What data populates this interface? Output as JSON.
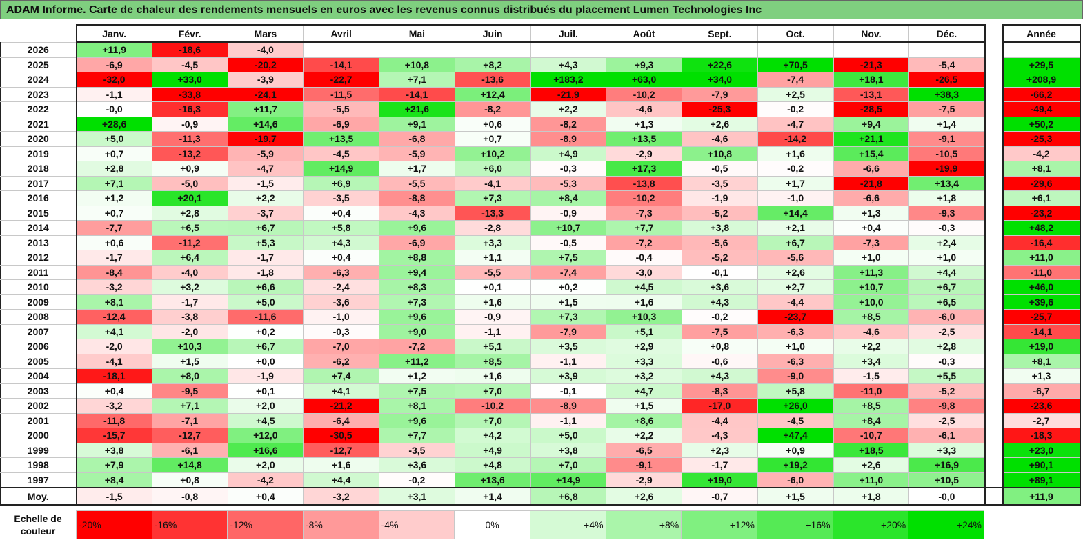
{
  "title": "ADAM Informe. Carte de chaleur des rendements mensuels en euros avec les revenus connus distribués du placement Lumen Technologies Inc",
  "chart_data": {
    "type": "heatmap",
    "title": "ADAM Informe. Carte de chaleur des rendements mensuels en euros avec les revenus connus distribués du placement Lumen Technologies Inc",
    "months": [
      "Janv.",
      "Févr.",
      "Mars",
      "Avril",
      "Mai",
      "Juin",
      "Juil.",
      "Août",
      "Sept.",
      "Oct.",
      "Nov.",
      "Déc."
    ],
    "year_header": "Année",
    "rows": [
      {
        "year": "2026",
        "m": [
          "+11,9",
          "-18,6",
          "-4,0",
          "",
          "",
          "",
          "",
          "",
          "",
          "",
          "",
          ""
        ],
        "y": ""
      },
      {
        "year": "2025",
        "m": [
          "-6,9",
          "-4,5",
          "-20,2",
          "-14,1",
          "+10,8",
          "+8,2",
          "+4,3",
          "+9,3",
          "+22,6",
          "+70,5",
          "-21,3",
          "-5,4"
        ],
        "y": "+29,5"
      },
      {
        "year": "2024",
        "m": [
          "-32,0",
          "+33,0",
          "-3,9",
          "-22,7",
          "+7,1",
          "-13,6",
          "+183,2",
          "+63,0",
          "+34,0",
          "-7,4",
          "+18,1",
          "-26,5"
        ],
        "y": "+208,9"
      },
      {
        "year": "2023",
        "m": [
          "-1,1",
          "-33,8",
          "-24,1",
          "-11,5",
          "-14,1",
          "+12,4",
          "-21,9",
          "-10,2",
          "-7,9",
          "+2,5",
          "-13,1",
          "+38,3"
        ],
        "y": "-66,2"
      },
      {
        "year": "2022",
        "m": [
          "-0,0",
          "-16,3",
          "+11,7",
          "-5,5",
          "+21,6",
          "-8,2",
          "+2,2",
          "-4,6",
          "-25,3",
          "-0,2",
          "-28,5",
          "-7,5"
        ],
        "y": "-49,4"
      },
      {
        "year": "2021",
        "m": [
          "+28,6",
          "-0,9",
          "+14,6",
          "-6,9",
          "+9,1",
          "+0,6",
          "-8,2",
          "+1,3",
          "+2,6",
          "-4,7",
          "+9,4",
          "+1,4"
        ],
        "y": "+50,2"
      },
      {
        "year": "2020",
        "m": [
          "+5,0",
          "-11,3",
          "-19,7",
          "+13,5",
          "-6,8",
          "+0,7",
          "-8,9",
          "+13,5",
          "-4,6",
          "-14,2",
          "+21,1",
          "-9,1"
        ],
        "y": "-25,3"
      },
      {
        "year": "2019",
        "m": [
          "+0,7",
          "-13,2",
          "-5,9",
          "-4,5",
          "-5,9",
          "+10,2",
          "+4,9",
          "-2,9",
          "+10,8",
          "+1,6",
          "+15,4",
          "-10,5"
        ],
        "y": "-4,2"
      },
      {
        "year": "2018",
        "m": [
          "+2,8",
          "+0,9",
          "-4,7",
          "+14,9",
          "+1,7",
          "+6,0",
          "-0,3",
          "+17,3",
          "-0,5",
          "-0,2",
          "-6,6",
          "-19,9"
        ],
        "y": "+8,1"
      },
      {
        "year": "2017",
        "m": [
          "+7,1",
          "-5,0",
          "-1,5",
          "+6,9",
          "-5,5",
          "-4,1",
          "-5,3",
          "-13,8",
          "-3,5",
          "+1,7",
          "-21,8",
          "+13,4"
        ],
        "y": "-29,6"
      },
      {
        "year": "2016",
        "m": [
          "+1,2",
          "+20,1",
          "+2,2",
          "-3,5",
          "-8,8",
          "+7,3",
          "+8,4",
          "-10,2",
          "-1,9",
          "-1,0",
          "-6,6",
          "+1,8"
        ],
        "y": "+6,1"
      },
      {
        "year": "2015",
        "m": [
          "+0,7",
          "+2,8",
          "-3,7",
          "+0,4",
          "-4,3",
          "-13,3",
          "-0,9",
          "-7,3",
          "-5,2",
          "+14,4",
          "+1,3",
          "-9,3"
        ],
        "y": "-23,2"
      },
      {
        "year": "2014",
        "m": [
          "-7,7",
          "+6,5",
          "+6,7",
          "+5,8",
          "+9,6",
          "-2,8",
          "+10,7",
          "+7,7",
          "+3,8",
          "+2,1",
          "+0,4",
          "-0,3"
        ],
        "y": "+48,2"
      },
      {
        "year": "2013",
        "m": [
          "+0,6",
          "-11,2",
          "+5,3",
          "+4,3",
          "-6,9",
          "+3,3",
          "-0,5",
          "-7,2",
          "-5,6",
          "+6,7",
          "-7,3",
          "+2,4"
        ],
        "y": "-16,4"
      },
      {
        "year": "2012",
        "m": [
          "-1,7",
          "+6,4",
          "-1,7",
          "+0,4",
          "+8,8",
          "+1,1",
          "+7,5",
          "-0,4",
          "-5,2",
          "-5,6",
          "+1,0",
          "+1,0"
        ],
        "y": "+11,0"
      },
      {
        "year": "2011",
        "m": [
          "-8,4",
          "-4,0",
          "-1,8",
          "-6,3",
          "+9,4",
          "-5,5",
          "-7,4",
          "-3,0",
          "-0,1",
          "+2,6",
          "+11,3",
          "+4,4"
        ],
        "y": "-11,0"
      },
      {
        "year": "2010",
        "m": [
          "-3,2",
          "+3,2",
          "+6,6",
          "-2,4",
          "+8,3",
          "+0,1",
          "+0,2",
          "+4,5",
          "+3,6",
          "+2,7",
          "+10,7",
          "+6,7"
        ],
        "y": "+46,0"
      },
      {
        "year": "2009",
        "m": [
          "+8,1",
          "-1,7",
          "+5,0",
          "-3,6",
          "+7,3",
          "+1,6",
          "+1,5",
          "+1,6",
          "+4,3",
          "-4,4",
          "+10,0",
          "+6,5"
        ],
        "y": "+39,6"
      },
      {
        "year": "2008",
        "m": [
          "-12,4",
          "-3,8",
          "-11,6",
          "-1,0",
          "+9,6",
          "-0,9",
          "+7,3",
          "+10,3",
          "-0,2",
          "-23,7",
          "+8,5",
          "-6,0"
        ],
        "y": "-25,7"
      },
      {
        "year": "2007",
        "m": [
          "+4,1",
          "-2,0",
          "+0,2",
          "-0,3",
          "+9,0",
          "-1,1",
          "-7,9",
          "+5,1",
          "-7,5",
          "-6,3",
          "-4,6",
          "-2,5"
        ],
        "y": "-14,1"
      },
      {
        "year": "2006",
        "m": [
          "-2,0",
          "+10,3",
          "+6,7",
          "-7,0",
          "-7,2",
          "+5,1",
          "+3,5",
          "+2,9",
          "+0,8",
          "+1,0",
          "+2,2",
          "+2,8"
        ],
        "y": "+19,0"
      },
      {
        "year": "2005",
        "m": [
          "-4,1",
          "+1,5",
          "+0,0",
          "-6,2",
          "+11,2",
          "+8,5",
          "-1,1",
          "+3,3",
          "-0,6",
          "-6,3",
          "+3,4",
          "-0,3"
        ],
        "y": "+8,1"
      },
      {
        "year": "2004",
        "m": [
          "-18,1",
          "+8,0",
          "-1,9",
          "+7,4",
          "+1,2",
          "+1,6",
          "+3,9",
          "+3,2",
          "+4,3",
          "-9,0",
          "-1,5",
          "+5,5"
        ],
        "y": "+1,3"
      },
      {
        "year": "2003",
        "m": [
          "+0,4",
          "-9,5",
          "+0,1",
          "+4,1",
          "+7,5",
          "+7,0",
          "-0,1",
          "+4,7",
          "-8,3",
          "+5,8",
          "-11,0",
          "-5,2"
        ],
        "y": "-6,7"
      },
      {
        "year": "2002",
        "m": [
          "-3,2",
          "+7,1",
          "+2,0",
          "-21,2",
          "+8,1",
          "-10,2",
          "-8,9",
          "+1,5",
          "-17,0",
          "+26,0",
          "+8,5",
          "-9,8"
        ],
        "y": "-23,6"
      },
      {
        "year": "2001",
        "m": [
          "-11,8",
          "-7,1",
          "+4,5",
          "-6,4",
          "+9,6",
          "+7,0",
          "-1,1",
          "+8,6",
          "-4,4",
          "-4,5",
          "+8,4",
          "-2,5"
        ],
        "y": "-2,7"
      },
      {
        "year": "2000",
        "m": [
          "-15,7",
          "-12,7",
          "+12,0",
          "-30,5",
          "+7,7",
          "+4,2",
          "+5,0",
          "+2,2",
          "-4,3",
          "+47,4",
          "-10,7",
          "-6,1"
        ],
        "y": "-18,3"
      },
      {
        "year": "1999",
        "m": [
          "+3,8",
          "-6,1",
          "+16,6",
          "-12,7",
          "-3,5",
          "+4,9",
          "+3,8",
          "-6,5",
          "+2,3",
          "+0,9",
          "+18,5",
          "+3,3"
        ],
        "y": "+23,0"
      },
      {
        "year": "1998",
        "m": [
          "+7,9",
          "+14,8",
          "+2,0",
          "+1,6",
          "+3,6",
          "+4,8",
          "+7,0",
          "-9,1",
          "-1,7",
          "+19,2",
          "+2,6",
          "+16,9"
        ],
        "y": "+90,1"
      },
      {
        "year": "1997",
        "m": [
          "+8,4",
          "+0,8",
          "-4,2",
          "+4,4",
          "-0,2",
          "+13,6",
          "+14,9",
          "-2,9",
          "+19,0",
          "-6,0",
          "+11,0",
          "+10,5"
        ],
        "y": "+89,1"
      }
    ],
    "average": {
      "label": "Moy.",
      "m": [
        "-1,5",
        "-0,8",
        "+0,4",
        "-3,2",
        "+3,1",
        "+1,4",
        "+6,8",
        "+2,6",
        "-0,7",
        "+1,5",
        "+1,8",
        "-0,0"
      ],
      "y": "+11,9"
    },
    "scale": {
      "label": "Echelle de couleur",
      "steps": [
        "-20%",
        "-16%",
        "-12%",
        "-8%",
        "-4%",
        "0%",
        "+4%",
        "+8%",
        "+12%",
        "+16%",
        "+20%",
        "+24%"
      ]
    },
    "colors": {
      "negative": "#ff0000",
      "neutral": "#ffffff",
      "positive": "#00e000",
      "title_bg": "#7fcf7f"
    }
  }
}
